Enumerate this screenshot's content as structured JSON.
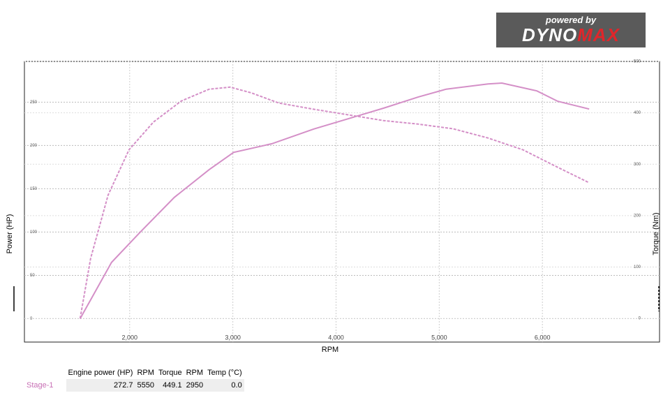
{
  "chart_data": {
    "type": "line",
    "xlabel": "RPM",
    "ylabel": "Power (HP)",
    "y2label": "Torque (Nm)",
    "xlim": [
      980,
      7135
    ],
    "ylim": [
      -27,
      297
    ],
    "y2lim": [
      -46,
      500
    ],
    "xticks": [
      {
        "value": 2000,
        "label": "2,000"
      },
      {
        "value": 3000,
        "label": "3,000"
      },
      {
        "value": 4000,
        "label": "4,000"
      },
      {
        "value": 5000,
        "label": "5,000"
      },
      {
        "value": 6000,
        "label": "6,000"
      }
    ],
    "yticks": [
      0,
      50,
      100,
      150,
      200,
      250
    ],
    "y2ticks": [
      0,
      100,
      200,
      300,
      400,
      500
    ],
    "grid": true,
    "series": [
      {
        "color": "#d48fc7",
        "dash": false,
        "x": [
          1520,
          1824,
          2095,
          2432,
          2770,
          3007,
          3378,
          3784,
          4122,
          4459,
          4797,
          5068,
          5473,
          5608,
          5946,
          6149,
          6453
        ],
        "values": [
          0,
          65,
          99,
          140,
          172,
          192,
          202,
          219,
          231,
          243,
          256,
          265,
          271,
          272,
          263,
          251,
          242
        ]
      },
      {
        "color": "#d48fc7",
        "dash": true,
        "axis": "y2",
        "x": [
          1520,
          1622,
          1791,
          1993,
          2230,
          2500,
          2770,
          2973,
          3176,
          3446,
          3784,
          4122,
          4459,
          4797,
          5135,
          5473,
          5811,
          6149,
          6453
        ],
        "values": [
          0,
          117,
          240,
          328,
          382,
          423,
          446,
          450,
          439,
          419,
          407,
          396,
          385,
          378,
          369,
          351,
          328,
          294,
          264
        ]
      }
    ]
  },
  "logo": {
    "tagline": "powered by",
    "brand1": "DYNO",
    "brand2": "MAX"
  },
  "table": {
    "columns": [
      "Engine power (HP)",
      "RPM",
      "Torque",
      "RPM",
      "Temp (°C)"
    ],
    "rows": [
      {
        "label": "Stage-1",
        "cells": [
          "272.7",
          "5550",
          "449.1",
          "2950",
          "0.0"
        ]
      }
    ]
  }
}
